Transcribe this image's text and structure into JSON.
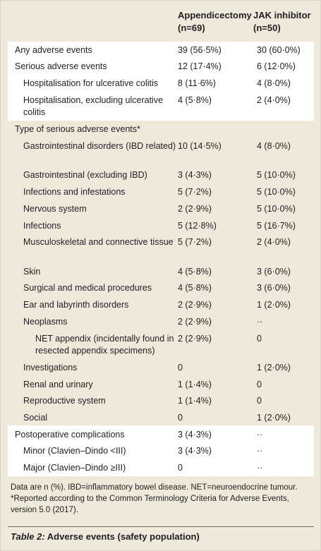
{
  "columns": {
    "appendicectomy": {
      "title": "Appendicectomy",
      "n": "(n=69)"
    },
    "jak": {
      "title": "JAK inhibitor",
      "n": "(n=50)"
    }
  },
  "rows": [
    {
      "label": "Any adverse events",
      "a": "39 (56·5%)",
      "j": "30 (60·0%)"
    },
    {
      "label": "Serious adverse events",
      "a": "12 (17·4%)",
      "j": "6 (12·0%)"
    },
    {
      "label": "Hospitalisation for ulcerative colitis",
      "a": "8 (11·6%)",
      "j": "4 (8·0%)"
    },
    {
      "label": "Hospitalisation, excluding ulcerative colitis",
      "a": "4 (5·8%)",
      "j": "2 (4·0%)"
    },
    {
      "label": "Type of serious adverse events*",
      "a": "",
      "j": ""
    },
    {
      "label": "Gastrointestinal disorders (IBD related)",
      "a": "10 (14·5%)",
      "j": "4 (8·0%)"
    },
    {
      "label": "Gastrointestinal (excluding IBD)",
      "a": "3 (4·3%)",
      "j": "5 (10·0%)"
    },
    {
      "label": "Infections and infestations",
      "a": "5 (7·2%)",
      "j": "5 (10·0%)"
    },
    {
      "label": "Nervous system",
      "a": "2 (2·9%)",
      "j": "5 (10·0%)"
    },
    {
      "label": "Infections",
      "a": "5 (12·8%)",
      "j": "5 (16·7%)"
    },
    {
      "label": "Musculoskeletal and connective tissue",
      "a": "5 (7·2%)",
      "j": "2 (4·0%)"
    },
    {
      "label": "Skin",
      "a": "4 (5·8%)",
      "j": "3 (6·0%)"
    },
    {
      "label": "Surgical and medical procedures",
      "a": "4 (5·8%)",
      "j": "3 (6·0%)"
    },
    {
      "label": "Ear and labyrinth disorders",
      "a": "2 (2·9%)",
      "j": "1 (2·0%)"
    },
    {
      "label": "Neoplasms",
      "a": "2 (2·9%)",
      "j": "··"
    },
    {
      "label": "NET appendix (incidentally found in resected appendix specimens)",
      "a": "2 (2·9%)",
      "j": "0"
    },
    {
      "label": "Investigations",
      "a": "0",
      "j": "1 (2·0%)"
    },
    {
      "label": "Renal and urinary",
      "a": "1 (1·4%)",
      "j": "0"
    },
    {
      "label": "Reproductive system",
      "a": "1 (1·4%)",
      "j": "0"
    },
    {
      "label": "Social",
      "a": "0",
      "j": "1 (2·0%)"
    },
    {
      "label": "Postoperative complications",
      "a": "3 (4·3%)",
      "j": "··"
    },
    {
      "label": "Minor (Clavien–Dindo <III)",
      "a": "3 (4·3%)",
      "j": "··"
    },
    {
      "label": "Major (Clavien–Dindo ≥III)",
      "a": "0",
      "j": "··"
    }
  ],
  "footnotes": [
    "Data are n (%). IBD=inflammatory bowel disease. NET=neuroendocrine tumour.",
    "*Reported according to the Common Terminology Criteria for Adverse Events, version 5.0 (2017)."
  ],
  "caption": {
    "label": "Table 2:",
    "text": "Adverse events (safety population)"
  }
}
